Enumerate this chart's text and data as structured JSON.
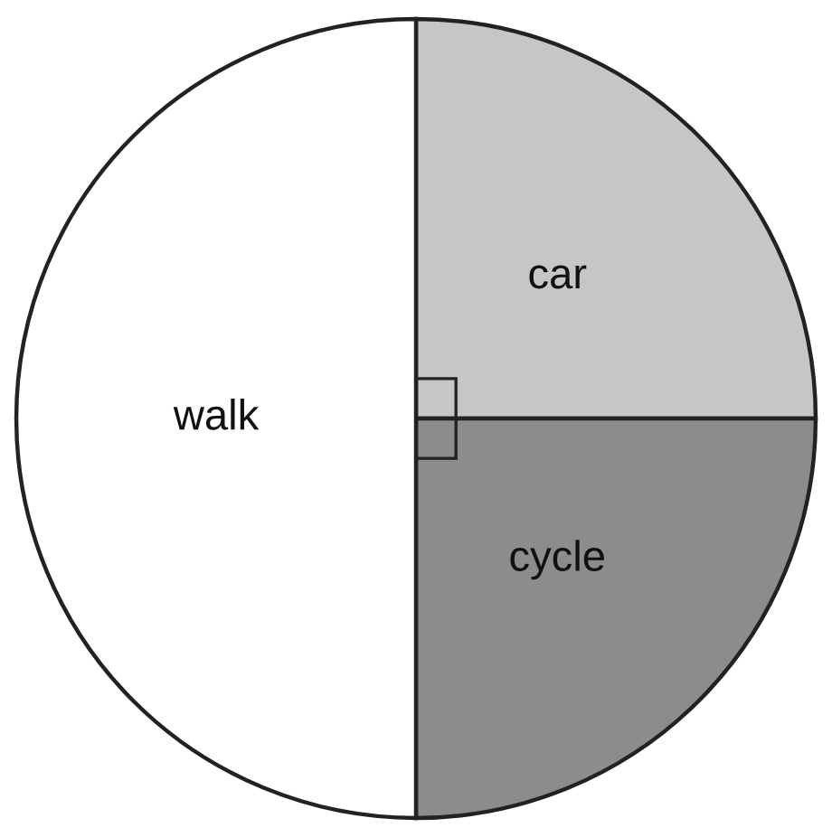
{
  "chart_data": {
    "type": "pie",
    "categories": [
      "car",
      "cycle",
      "walk"
    ],
    "values": [
      25,
      25,
      50
    ],
    "colors": [
      "#c6c6c6",
      "#8c8c8c",
      "#ffffff"
    ]
  }
}
